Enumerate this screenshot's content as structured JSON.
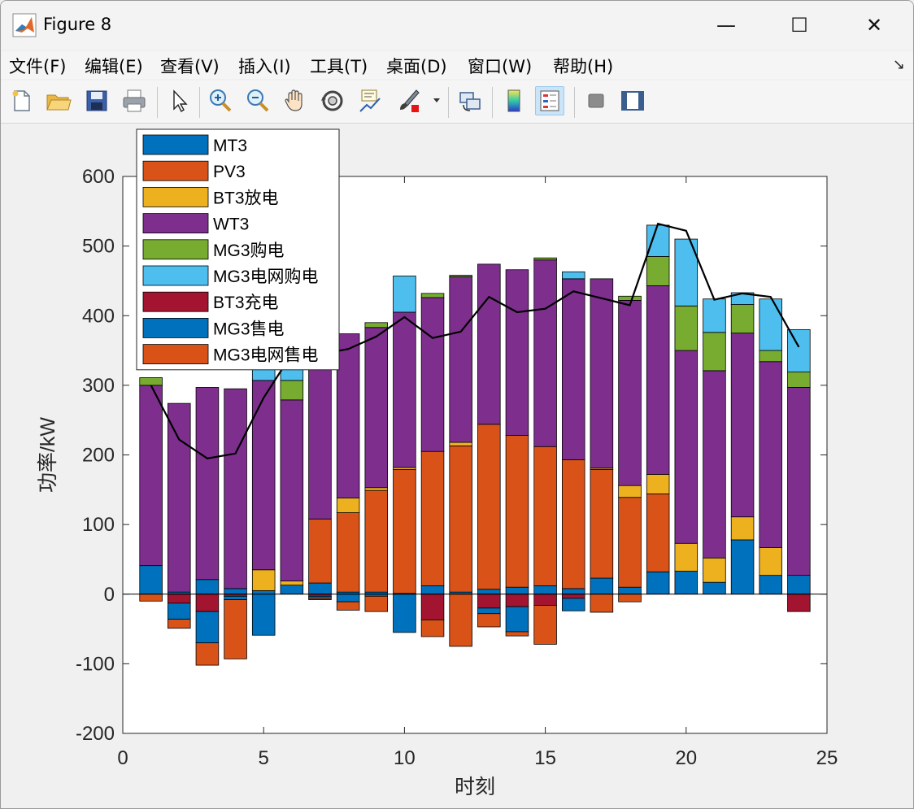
{
  "window": {
    "title": "Figure 8",
    "minimize": "—",
    "maximize": "☐",
    "close": "✕"
  },
  "menu": {
    "items": [
      "文件(F)",
      "编辑(E)",
      "查看(V)",
      "插入(I)",
      "工具(T)",
      "桌面(D)",
      "窗口(W)",
      "帮助(H)"
    ],
    "overflow": "↘"
  },
  "toolbar": {
    "icons": [
      "new-file-icon",
      "open-folder-icon",
      "save-icon",
      "print-icon",
      "pointer-icon",
      "zoom-in-icon",
      "zoom-out-icon",
      "pan-icon",
      "rotate-3d-icon",
      "data-cursor-icon",
      "brush-icon",
      "link-plot-icon",
      "colorbar-icon",
      "legend-icon",
      "hide-plot-tools-icon",
      "show-plot-tools-icon"
    ],
    "active": "legend-icon"
  },
  "chart_data": {
    "type": "bar",
    "stacked": true,
    "xlabel": "时刻",
    "ylabel": "功率/kW",
    "xlim": [
      0,
      25
    ],
    "ylim": [
      -200,
      600
    ],
    "xticks": [
      0,
      5,
      10,
      15,
      20,
      25
    ],
    "yticks": [
      -200,
      -100,
      0,
      100,
      200,
      300,
      400,
      500,
      600
    ],
    "legend_position": "top-left",
    "x": [
      1,
      2,
      3,
      4,
      5,
      6,
      7,
      8,
      9,
      10,
      11,
      12,
      13,
      14,
      15,
      16,
      17,
      18,
      19,
      20,
      21,
      22,
      23,
      24
    ],
    "positive_series": [
      {
        "name": "MT3",
        "color": "#0072BD",
        "values": [
          41,
          3,
          21,
          8,
          5,
          13,
          16,
          3,
          3,
          1,
          12,
          3,
          7,
          10,
          12,
          8,
          23,
          10,
          32,
          33,
          17,
          78,
          27,
          27
        ]
      },
      {
        "name": "PV3",
        "color": "#D95319",
        "values": [
          0,
          0,
          0,
          0,
          0,
          0,
          92,
          114,
          146,
          178,
          193,
          210,
          237,
          218,
          200,
          185,
          156,
          129,
          112,
          0,
          0,
          0,
          0,
          0
        ]
      },
      {
        "name": "BT3放电",
        "color": "#EDB120",
        "values": [
          0,
          0,
          0,
          0,
          30,
          6,
          0,
          21,
          4,
          3,
          0,
          5,
          0,
          0,
          0,
          0,
          2,
          17,
          28,
          40,
          35,
          33,
          40,
          0
        ]
      },
      {
        "name": "WT3",
        "color": "#7E2F8E",
        "values": [
          259,
          271,
          276,
          287,
          272,
          260,
          262,
          236,
          230,
          223,
          221,
          238,
          230,
          238,
          268,
          260,
          272,
          266,
          271,
          277,
          269,
          264,
          267,
          270
        ]
      },
      {
        "name": "MG3购电",
        "color": "#77AC30",
        "values": [
          11,
          0,
          0,
          0,
          0,
          28,
          0,
          0,
          7,
          0,
          6,
          2,
          0,
          0,
          3,
          0,
          0,
          6,
          42,
          64,
          55,
          41,
          16,
          22
        ]
      },
      {
        "name": "MG3电网购电",
        "color": "#4DBEEE",
        "values": [
          0,
          0,
          0,
          0,
          28,
          16,
          0,
          0,
          0,
          52,
          0,
          0,
          0,
          0,
          0,
          10,
          0,
          0,
          45,
          96,
          48,
          17,
          74,
          61
        ]
      }
    ],
    "negative_series": [
      {
        "name": "BT3充电",
        "color": "#A2142F",
        "values": [
          0,
          -13,
          -25,
          -3,
          0,
          0,
          -3,
          0,
          0,
          0,
          -37,
          0,
          -20,
          -18,
          -16,
          -6,
          0,
          0,
          0,
          0,
          0,
          0,
          0,
          -25
        ]
      },
      {
        "name": "MG3售电",
        "color": "#0072BD",
        "values": [
          0,
          -23,
          -45,
          -5,
          -59,
          0,
          -3,
          -11,
          -3,
          -55,
          0,
          0,
          -8,
          -36,
          0,
          -18,
          0,
          0,
          0,
          0,
          0,
          0,
          0,
          0
        ]
      },
      {
        "name": "MG3电网售电",
        "color": "#D95319",
        "values": [
          -10,
          -13,
          -32,
          -85,
          0,
          0,
          -2,
          -12,
          -22,
          0,
          -24,
          -75,
          -19,
          -6,
          -56,
          0,
          -26,
          -11,
          0,
          0,
          0,
          0,
          0,
          0
        ]
      }
    ],
    "line": {
      "color": "#000000",
      "y": [
        300,
        222,
        195,
        202,
        282,
        345,
        345,
        352,
        370,
        398,
        368,
        377,
        427,
        405,
        410,
        435,
        425,
        415,
        532,
        522,
        423,
        432,
        427,
        355
      ]
    },
    "legend": [
      "MT3",
      "PV3",
      "BT3放电",
      "WT3",
      "MG3购电",
      "MG3电网购电",
      "BT3充电",
      "MG3售电",
      "MG3电网售电"
    ]
  }
}
